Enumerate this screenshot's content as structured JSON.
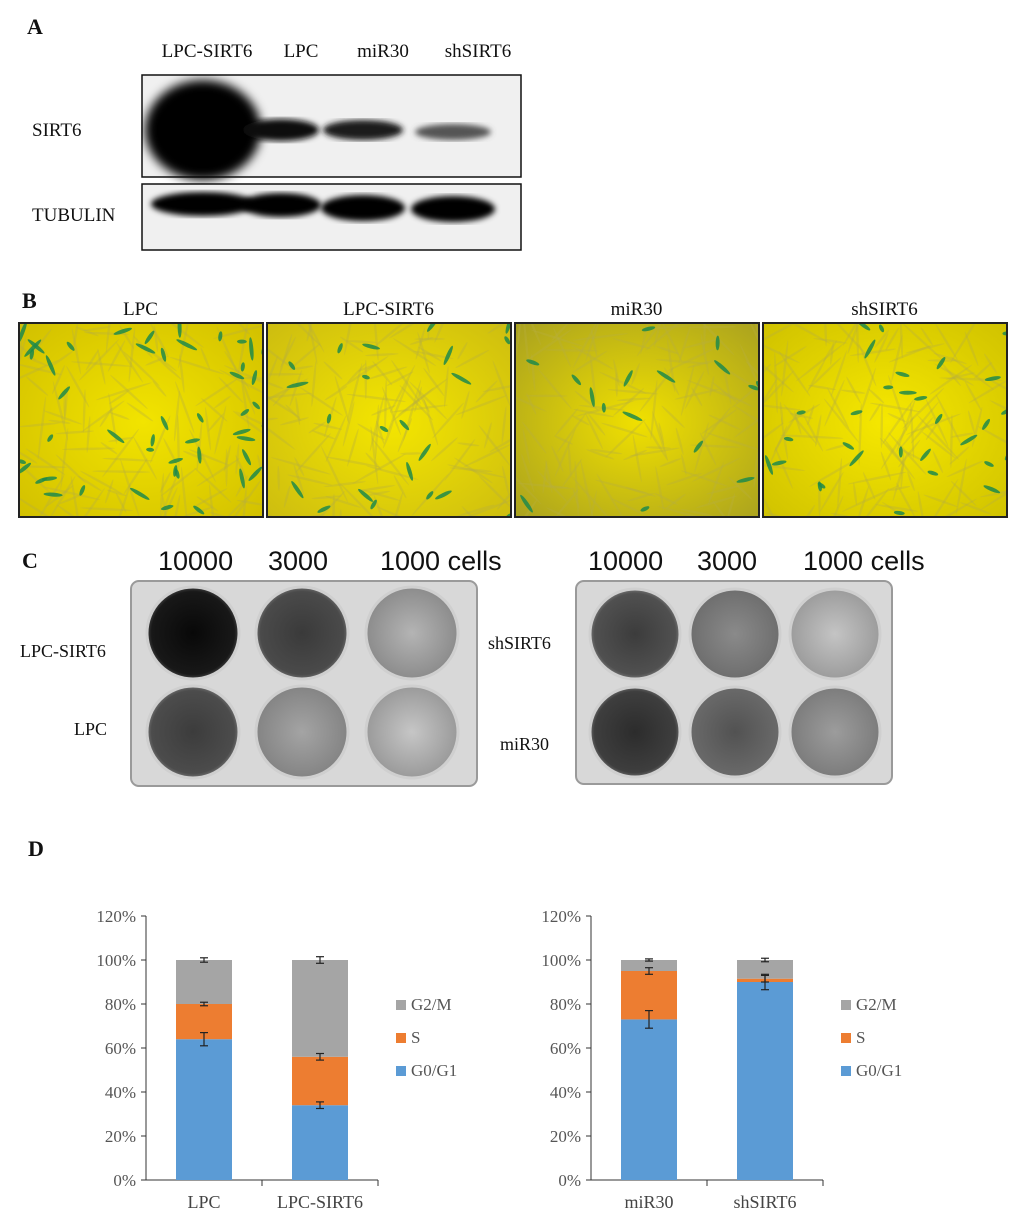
{
  "panel_a": {
    "letter": "A",
    "lanes": [
      "LPC-SIRT6",
      "LPC",
      "miR30",
      "shSIRT6"
    ],
    "rows": [
      "SIRT6",
      "TUBULIN"
    ]
  },
  "panel_b": {
    "letter": "B",
    "images": [
      "LPC",
      "LPC-SIRT6",
      "miR30",
      "shSIRT6"
    ]
  },
  "panel_c": {
    "letter": "C",
    "left": {
      "header": [
        "10000",
        "3000",
        "1000 cells"
      ],
      "rows": [
        "LPC-SIRT6",
        "LPC"
      ]
    },
    "right": {
      "header": [
        "10000",
        "3000",
        "1000 cells"
      ],
      "rows": [
        "shSIRT6",
        "miR30"
      ]
    }
  },
  "panel_d": {
    "letter": "D"
  },
  "chart_data": [
    {
      "type": "bar",
      "stacked": true,
      "categories": [
        "LPC",
        "LPC-SIRT6"
      ],
      "yticks": [
        "0%",
        "20%",
        "40%",
        "60%",
        "80%",
        "100%",
        "120%"
      ],
      "ylim": [
        0,
        120
      ],
      "series": [
        {
          "name": "G0/G1",
          "values": [
            64,
            34
          ],
          "errors": [
            3,
            1.5
          ],
          "color": "#5b9bd5"
        },
        {
          "name": "S",
          "values": [
            16,
            22
          ],
          "errors": [
            0.8,
            1.5
          ],
          "color": "#ed7d31"
        },
        {
          "name": "G2/M",
          "values": [
            20,
            44
          ],
          "errors": [
            1,
            1.5
          ],
          "color": "#a5a5a5"
        }
      ],
      "legend": "right"
    },
    {
      "type": "bar",
      "stacked": true,
      "categories": [
        "miR30",
        "shSIRT6"
      ],
      "yticks": [
        "0%",
        "20%",
        "40%",
        "60%",
        "80%",
        "100%",
        "120%"
      ],
      "ylim": [
        0,
        120
      ],
      "series": [
        {
          "name": "G0/G1",
          "values": [
            73,
            90
          ],
          "errors": [
            4,
            3.5
          ],
          "color": "#5b9bd5"
        },
        {
          "name": "S",
          "values": [
            22,
            1.5
          ],
          "errors": [
            1.5,
            1.5
          ],
          "color": "#ed7d31"
        },
        {
          "name": "G2/M",
          "values": [
            5,
            8.5
          ],
          "errors": [
            0.5,
            0.8
          ],
          "color": "#a5a5a5"
        }
      ],
      "legend": "right"
    }
  ]
}
